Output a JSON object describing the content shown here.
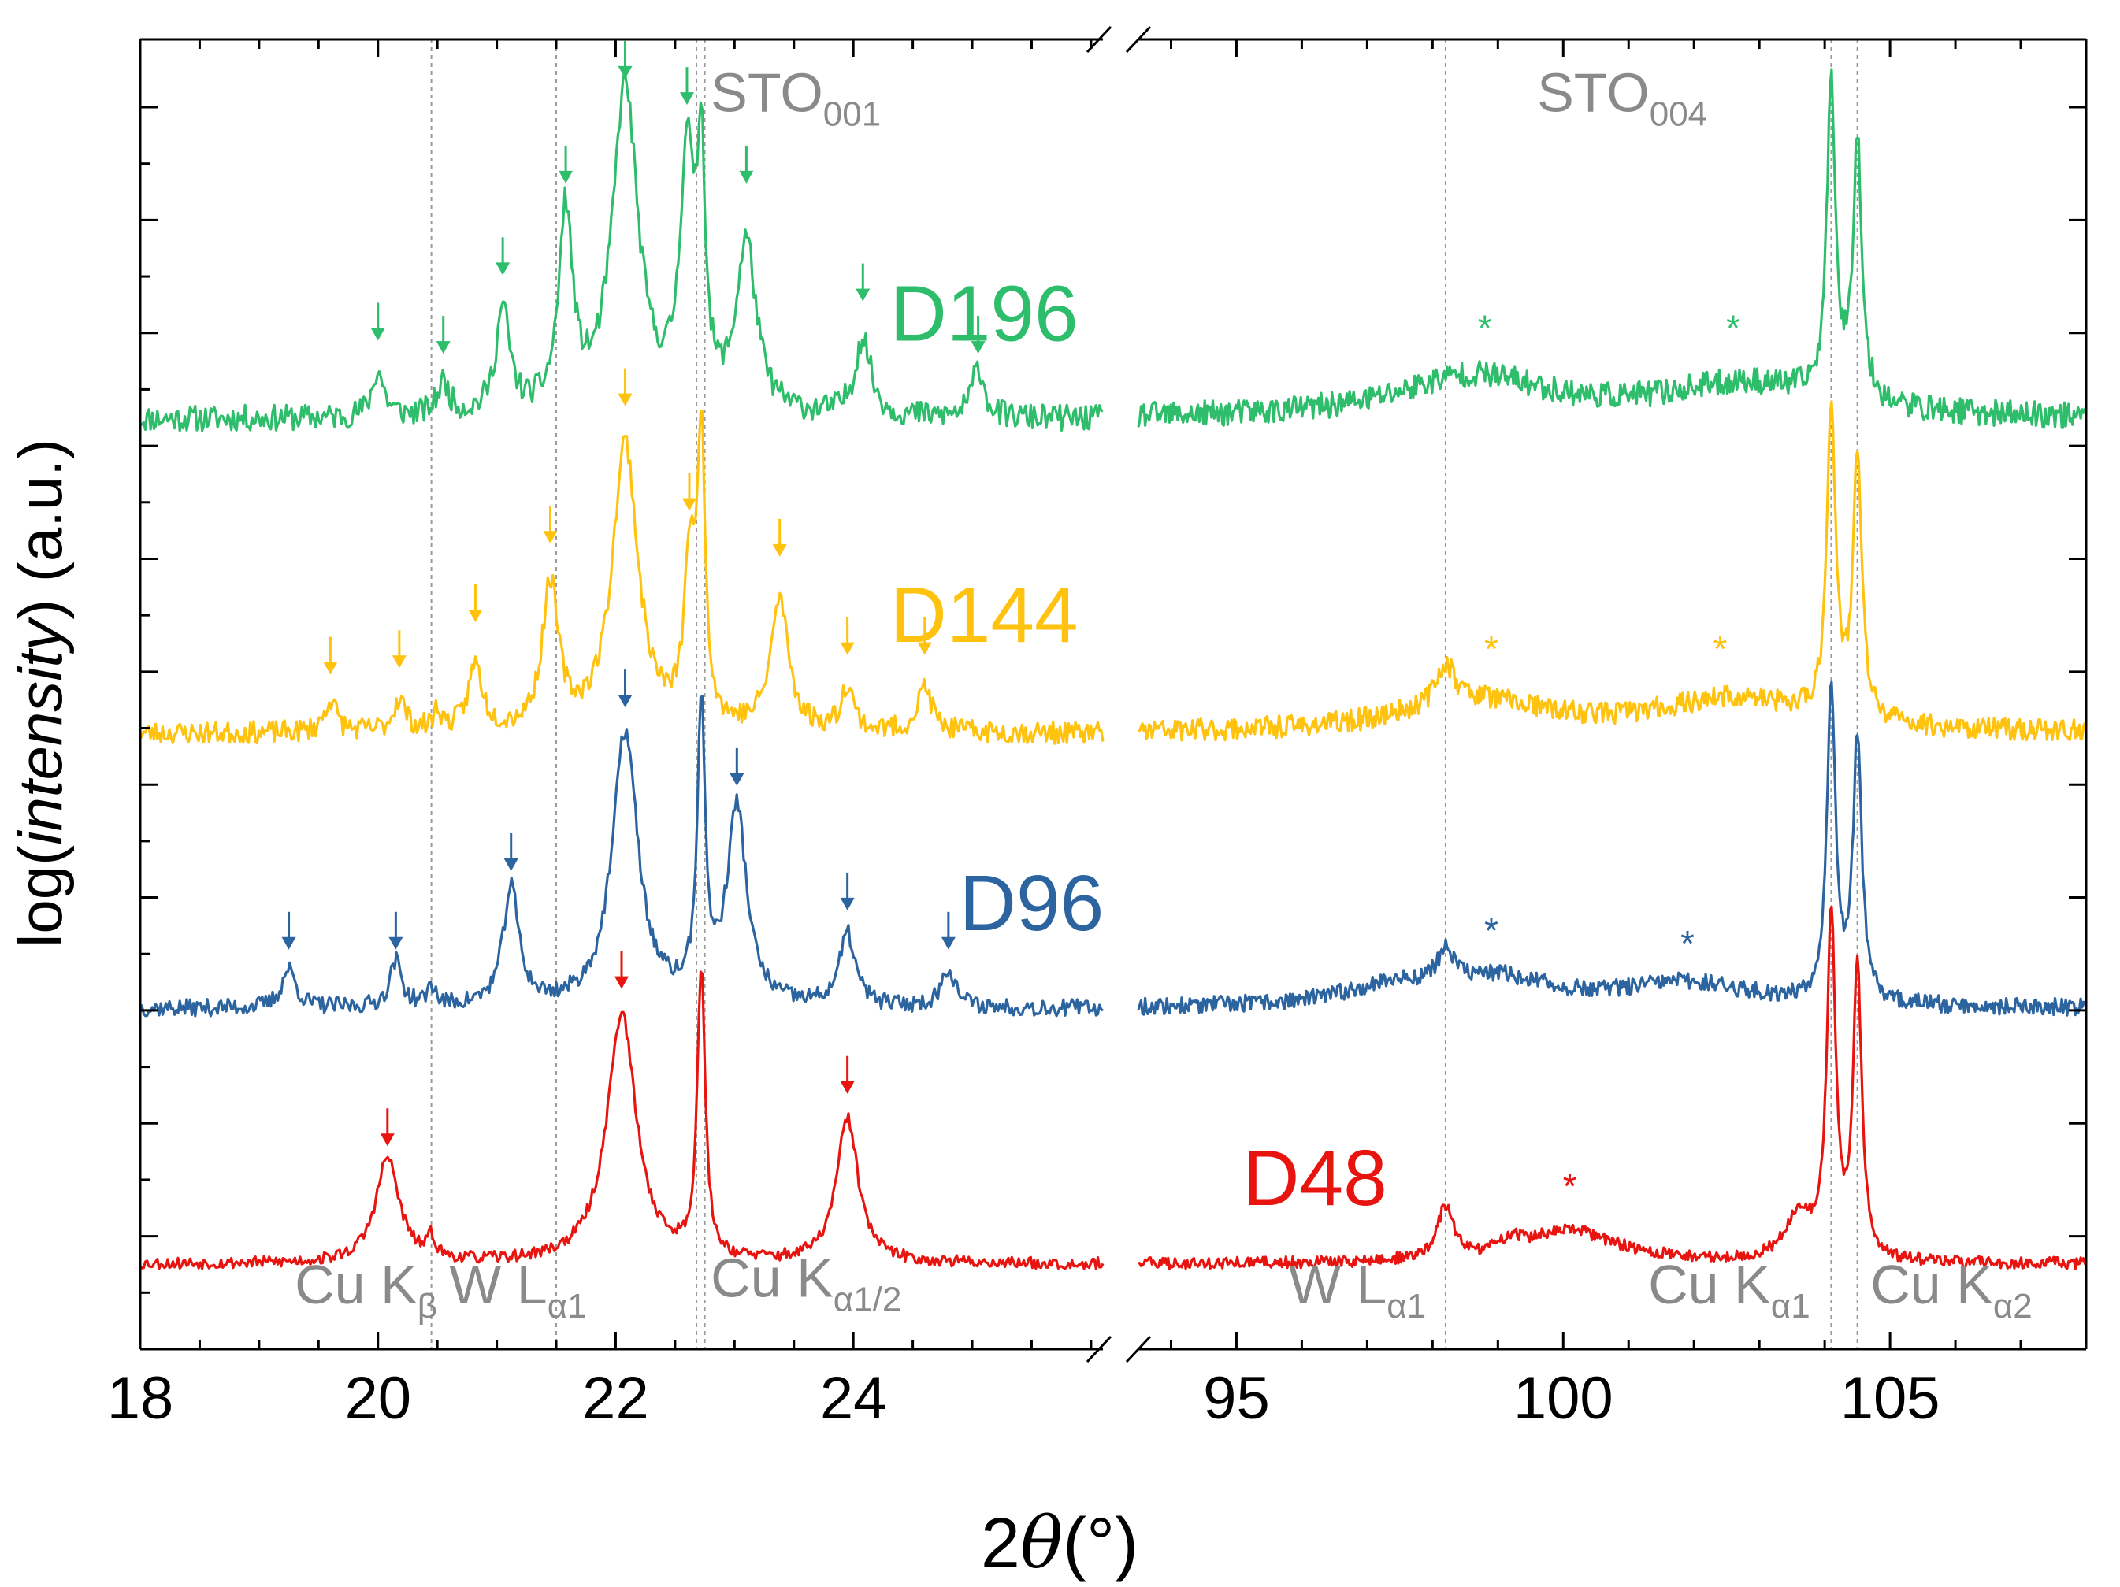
{
  "chart_data": {
    "type": "line",
    "title": "",
    "xlabel": {
      "prefix": "2",
      "symbol": "θ",
      "suffix": "(°)"
    },
    "ylabel": {
      "prefix": "log(",
      "italic": "intensity",
      "suffix": ") (a.u.)"
    },
    "x_panels": [
      {
        "xlim": [
          18,
          26.1
        ],
        "ticks": [
          18,
          20,
          22,
          24
        ],
        "tick_labels": [
          "18",
          "20",
          "22",
          "24"
        ]
      },
      {
        "xlim": [
          93.5,
          108
        ],
        "ticks": [
          95,
          100,
          105
        ],
        "tick_labels": [
          "95",
          "100",
          "105"
        ]
      }
    ],
    "ylim": [
      0,
      100
    ],
    "y_scale_note": "log scale, arbitrary units, no tick labels",
    "reference_lines": [
      {
        "name": "Cu Kβ",
        "panel": 0,
        "x": 20.45
      },
      {
        "name": "W Lα1",
        "panel": 0,
        "x": 21.5
      },
      {
        "name": "Cu Kα1/2 (a)",
        "panel": 0,
        "x": 22.68
      },
      {
        "name": "Cu Kα1/2 (b)",
        "panel": 0,
        "x": 22.75
      },
      {
        "name": "W Lα1",
        "panel": 1,
        "x": 98.2
      },
      {
        "name": "Cu Kα1",
        "panel": 1,
        "x": 104.1
      },
      {
        "name": "Cu Kα2",
        "panel": 1,
        "x": 104.5
      }
    ],
    "annotations": [
      {
        "panel": 0,
        "x": 22.8,
        "y": 94.5,
        "text": "STO",
        "sub": "001"
      },
      {
        "panel": 1,
        "x": 99.6,
        "y": 94.5,
        "text": "STO",
        "sub": "004"
      },
      {
        "panel": 0,
        "x": 19.3,
        "y": 3.5,
        "text": "Cu K",
        "sub": "β"
      },
      {
        "panel": 0,
        "x": 20.6,
        "y": 3.5,
        "text": "W L",
        "sub": "α1"
      },
      {
        "panel": 0,
        "x": 22.8,
        "y": 4.0,
        "text": "Cu K",
        "sub": "α1/2"
      },
      {
        "panel": 1,
        "x": 95.8,
        "y": 3.5,
        "text": "W L",
        "sub": "α1"
      },
      {
        "panel": 1,
        "x": 101.3,
        "y": 3.5,
        "text": "Cu K",
        "sub": "α1"
      },
      {
        "panel": 1,
        "x": 104.7,
        "y": 3.5,
        "text": "Cu K",
        "sub": "α2"
      }
    ],
    "series": [
      {
        "name": "D196",
        "color": "#2ebd6b",
        "label_pos": {
          "panel": 0,
          "x": 25.1,
          "y": 77
        },
        "baseline": 71,
        "noise": 2.0,
        "seed": 11,
        "peaks": [
          {
            "panel": 0,
            "x": 20.0,
            "h": 3.5,
            "w": 0.06
          },
          {
            "panel": 0,
            "x": 20.55,
            "h": 2.5,
            "w": 0.06
          },
          {
            "panel": 0,
            "x": 21.05,
            "h": 8,
            "w": 0.07
          },
          {
            "panel": 0,
            "x": 21.58,
            "h": 15,
            "w": 0.07
          },
          {
            "panel": 0,
            "x": 22.08,
            "h": 25,
            "w": 0.13
          },
          {
            "panel": 0,
            "x": 22.6,
            "h": 19,
            "w": 0.07
          },
          {
            "panel": 0,
            "x": 22.72,
            "h": 18,
            "w": 0.04
          },
          {
            "panel": 0,
            "x": 23.1,
            "h": 13,
            "w": 0.1
          },
          {
            "panel": 0,
            "x": 24.08,
            "h": 6,
            "w": 0.08
          },
          {
            "panel": 0,
            "x": 25.05,
            "h": 4,
            "w": 0.06
          },
          {
            "panel": 1,
            "x": 98.6,
            "h": 3.2,
            "w": 1.4
          },
          {
            "panel": 1,
            "x": 102.8,
            "h": 2.5,
            "w": 1.5
          },
          {
            "panel": 1,
            "x": 104.1,
            "h": 24,
            "w": 0.08
          },
          {
            "panel": 1,
            "x": 104.5,
            "h": 20,
            "w": 0.08
          }
        ],
        "arrows": [
          {
            "panel": 0,
            "x": 20.0,
            "y": 77
          },
          {
            "panel": 0,
            "x": 20.55,
            "y": 76
          },
          {
            "panel": 0,
            "x": 21.05,
            "y": 82
          },
          {
            "panel": 0,
            "x": 21.58,
            "y": 89
          },
          {
            "panel": 0,
            "x": 22.08,
            "y": 97
          },
          {
            "panel": 0,
            "x": 22.6,
            "y": 95
          },
          {
            "panel": 0,
            "x": 23.1,
            "y": 89
          },
          {
            "panel": 0,
            "x": 24.08,
            "y": 80
          },
          {
            "panel": 0,
            "x": 25.05,
            "y": 76
          }
        ],
        "stars": [
          {
            "panel": 1,
            "x": 98.8,
            "y": 77
          },
          {
            "panel": 1,
            "x": 102.6,
            "y": 77
          }
        ]
      },
      {
        "name": "D144",
        "color": "#ffc20e",
        "label_pos": {
          "panel": 0,
          "x": 25.1,
          "y": 54
        },
        "baseline": 47,
        "noise": 1.7,
        "seed": 23,
        "peaks": [
          {
            "panel": 0,
            "x": 19.6,
            "h": 2.5,
            "w": 0.06
          },
          {
            "panel": 0,
            "x": 20.18,
            "h": 2.5,
            "w": 0.06
          },
          {
            "panel": 0,
            "x": 20.5,
            "h": 1.5,
            "w": 0.04
          },
          {
            "panel": 0,
            "x": 20.82,
            "h": 5,
            "w": 0.07
          },
          {
            "panel": 0,
            "x": 21.45,
            "h": 11,
            "w": 0.08
          },
          {
            "panel": 0,
            "x": 22.08,
            "h": 22,
            "w": 0.13
          },
          {
            "panel": 0,
            "x": 22.62,
            "h": 12,
            "w": 0.05
          },
          {
            "panel": 0,
            "x": 22.72,
            "h": 22,
            "w": 0.04
          },
          {
            "panel": 0,
            "x": 23.38,
            "h": 10,
            "w": 0.09
          },
          {
            "panel": 0,
            "x": 23.95,
            "h": 3.5,
            "w": 0.06
          },
          {
            "panel": 0,
            "x": 24.6,
            "h": 3.5,
            "w": 0.07
          },
          {
            "panel": 1,
            "x": 98.2,
            "h": 3,
            "w": 0.15
          },
          {
            "panel": 1,
            "x": 98.6,
            "h": 2.5,
            "w": 1.3
          },
          {
            "panel": 1,
            "x": 102.6,
            "h": 2.5,
            "w": 1.4
          },
          {
            "panel": 1,
            "x": 104.1,
            "h": 24,
            "w": 0.08
          },
          {
            "panel": 1,
            "x": 104.5,
            "h": 20,
            "w": 0.08
          }
        ],
        "arrows": [
          {
            "panel": 0,
            "x": 19.6,
            "y": 51.5
          },
          {
            "panel": 0,
            "x": 20.18,
            "y": 52
          },
          {
            "panel": 0,
            "x": 20.82,
            "y": 55.5
          },
          {
            "panel": 0,
            "x": 21.45,
            "y": 61.5
          },
          {
            "panel": 0,
            "x": 22.08,
            "y": 72
          },
          {
            "panel": 0,
            "x": 22.62,
            "y": 64
          },
          {
            "panel": 0,
            "x": 23.38,
            "y": 60.5
          },
          {
            "panel": 0,
            "x": 23.95,
            "y": 53
          },
          {
            "panel": 0,
            "x": 24.6,
            "y": 53
          }
        ],
        "stars": [
          {
            "panel": 1,
            "x": 98.9,
            "y": 52.5
          },
          {
            "panel": 1,
            "x": 102.4,
            "y": 52.5
          }
        ]
      },
      {
        "name": "D96",
        "color": "#2c64a0",
        "label_pos": {
          "panel": 0,
          "x": 25.5,
          "y": 32
        },
        "baseline": 26,
        "noise": 1.3,
        "seed": 37,
        "peaks": [
          {
            "panel": 0,
            "x": 19.25,
            "h": 3,
            "w": 0.07
          },
          {
            "panel": 0,
            "x": 20.15,
            "h": 3.5,
            "w": 0.06
          },
          {
            "panel": 0,
            "x": 20.45,
            "h": 1.5,
            "w": 0.04
          },
          {
            "panel": 0,
            "x": 21.12,
            "h": 9,
            "w": 0.08
          },
          {
            "panel": 0,
            "x": 22.08,
            "h": 21,
            "w": 0.13
          },
          {
            "panel": 0,
            "x": 22.72,
            "h": 22,
            "w": 0.04
          },
          {
            "panel": 0,
            "x": 23.02,
            "h": 15,
            "w": 0.1
          },
          {
            "panel": 0,
            "x": 23.95,
            "h": 5.5,
            "w": 0.08
          },
          {
            "panel": 0,
            "x": 24.8,
            "h": 3,
            "w": 0.07
          },
          {
            "panel": 1,
            "x": 98.2,
            "h": 2.5,
            "w": 0.15
          },
          {
            "panel": 1,
            "x": 97.4,
            "h": 1.5,
            "w": 0.9
          },
          {
            "panel": 1,
            "x": 99.0,
            "h": 2,
            "w": 1.0
          },
          {
            "panel": 1,
            "x": 101.9,
            "h": 1.8,
            "w": 1.2
          },
          {
            "panel": 1,
            "x": 104.1,
            "h": 24,
            "w": 0.08
          },
          {
            "panel": 1,
            "x": 104.5,
            "h": 20,
            "w": 0.08
          }
        ],
        "arrows": [
          {
            "panel": 0,
            "x": 19.25,
            "y": 30.5
          },
          {
            "panel": 0,
            "x": 20.15,
            "y": 30.5
          },
          {
            "panel": 0,
            "x": 21.12,
            "y": 36.5
          },
          {
            "panel": 0,
            "x": 22.08,
            "y": 49
          },
          {
            "panel": 0,
            "x": 23.02,
            "y": 43
          },
          {
            "panel": 0,
            "x": 23.95,
            "y": 33.5
          },
          {
            "panel": 0,
            "x": 24.8,
            "y": 30.5
          }
        ],
        "stars": [
          {
            "panel": 1,
            "x": 98.9,
            "y": 31
          },
          {
            "panel": 1,
            "x": 101.9,
            "y": 30
          }
        ]
      },
      {
        "name": "D48",
        "color": "#e8140f",
        "label_pos": {
          "panel": 1,
          "x": 96.2,
          "y": 11
        },
        "baseline": 6.5,
        "noise": 0.9,
        "seed": 53,
        "peaks": [
          {
            "panel": 0,
            "x": 20.08,
            "h": 8,
            "w": 0.12
          },
          {
            "panel": 0,
            "x": 20.45,
            "h": 1.5,
            "w": 0.04
          },
          {
            "panel": 0,
            "x": 22.05,
            "h": 19,
            "w": 0.15
          },
          {
            "panel": 0,
            "x": 22.72,
            "h": 22,
            "w": 0.04
          },
          {
            "panel": 0,
            "x": 23.95,
            "h": 11,
            "w": 0.11
          },
          {
            "panel": 1,
            "x": 98.2,
            "h": 4,
            "w": 0.15
          },
          {
            "panel": 1,
            "x": 99.2,
            "h": 1,
            "w": 0.2
          },
          {
            "panel": 1,
            "x": 100.1,
            "h": 2.5,
            "w": 0.9
          },
          {
            "panel": 1,
            "x": 103.6,
            "h": 3.5,
            "w": 0.25
          },
          {
            "panel": 1,
            "x": 104.1,
            "h": 26,
            "w": 0.08
          },
          {
            "panel": 1,
            "x": 104.5,
            "h": 22,
            "w": 0.08
          }
        ],
        "arrows": [
          {
            "panel": 0,
            "x": 20.08,
            "y": 15.5
          },
          {
            "panel": 0,
            "x": 22.05,
            "y": 27.5
          },
          {
            "panel": 0,
            "x": 23.95,
            "y": 19.5
          }
        ],
        "stars": [
          {
            "panel": 1,
            "x": 100.1,
            "y": 11.5
          }
        ]
      }
    ]
  }
}
